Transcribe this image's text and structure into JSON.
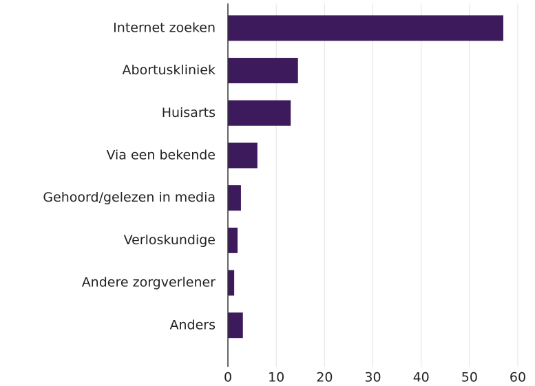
{
  "chart_data": {
    "type": "bar",
    "orientation": "horizontal",
    "categories": [
      "Internet zoeken",
      "Abortuskliniek",
      "Huisarts",
      "Via een bekende",
      "Gehoord/gelezen in media",
      "Verloskundige",
      "Andere zorgverlener",
      "Anders"
    ],
    "values": [
      57,
      14.5,
      13,
      6.1,
      2.7,
      2,
      1.3,
      3.1
    ],
    "color": "#3d1a5b",
    "xlim": [
      0,
      60
    ],
    "xticks": [
      0,
      10,
      20,
      30,
      40,
      50,
      60
    ],
    "grid": true
  }
}
